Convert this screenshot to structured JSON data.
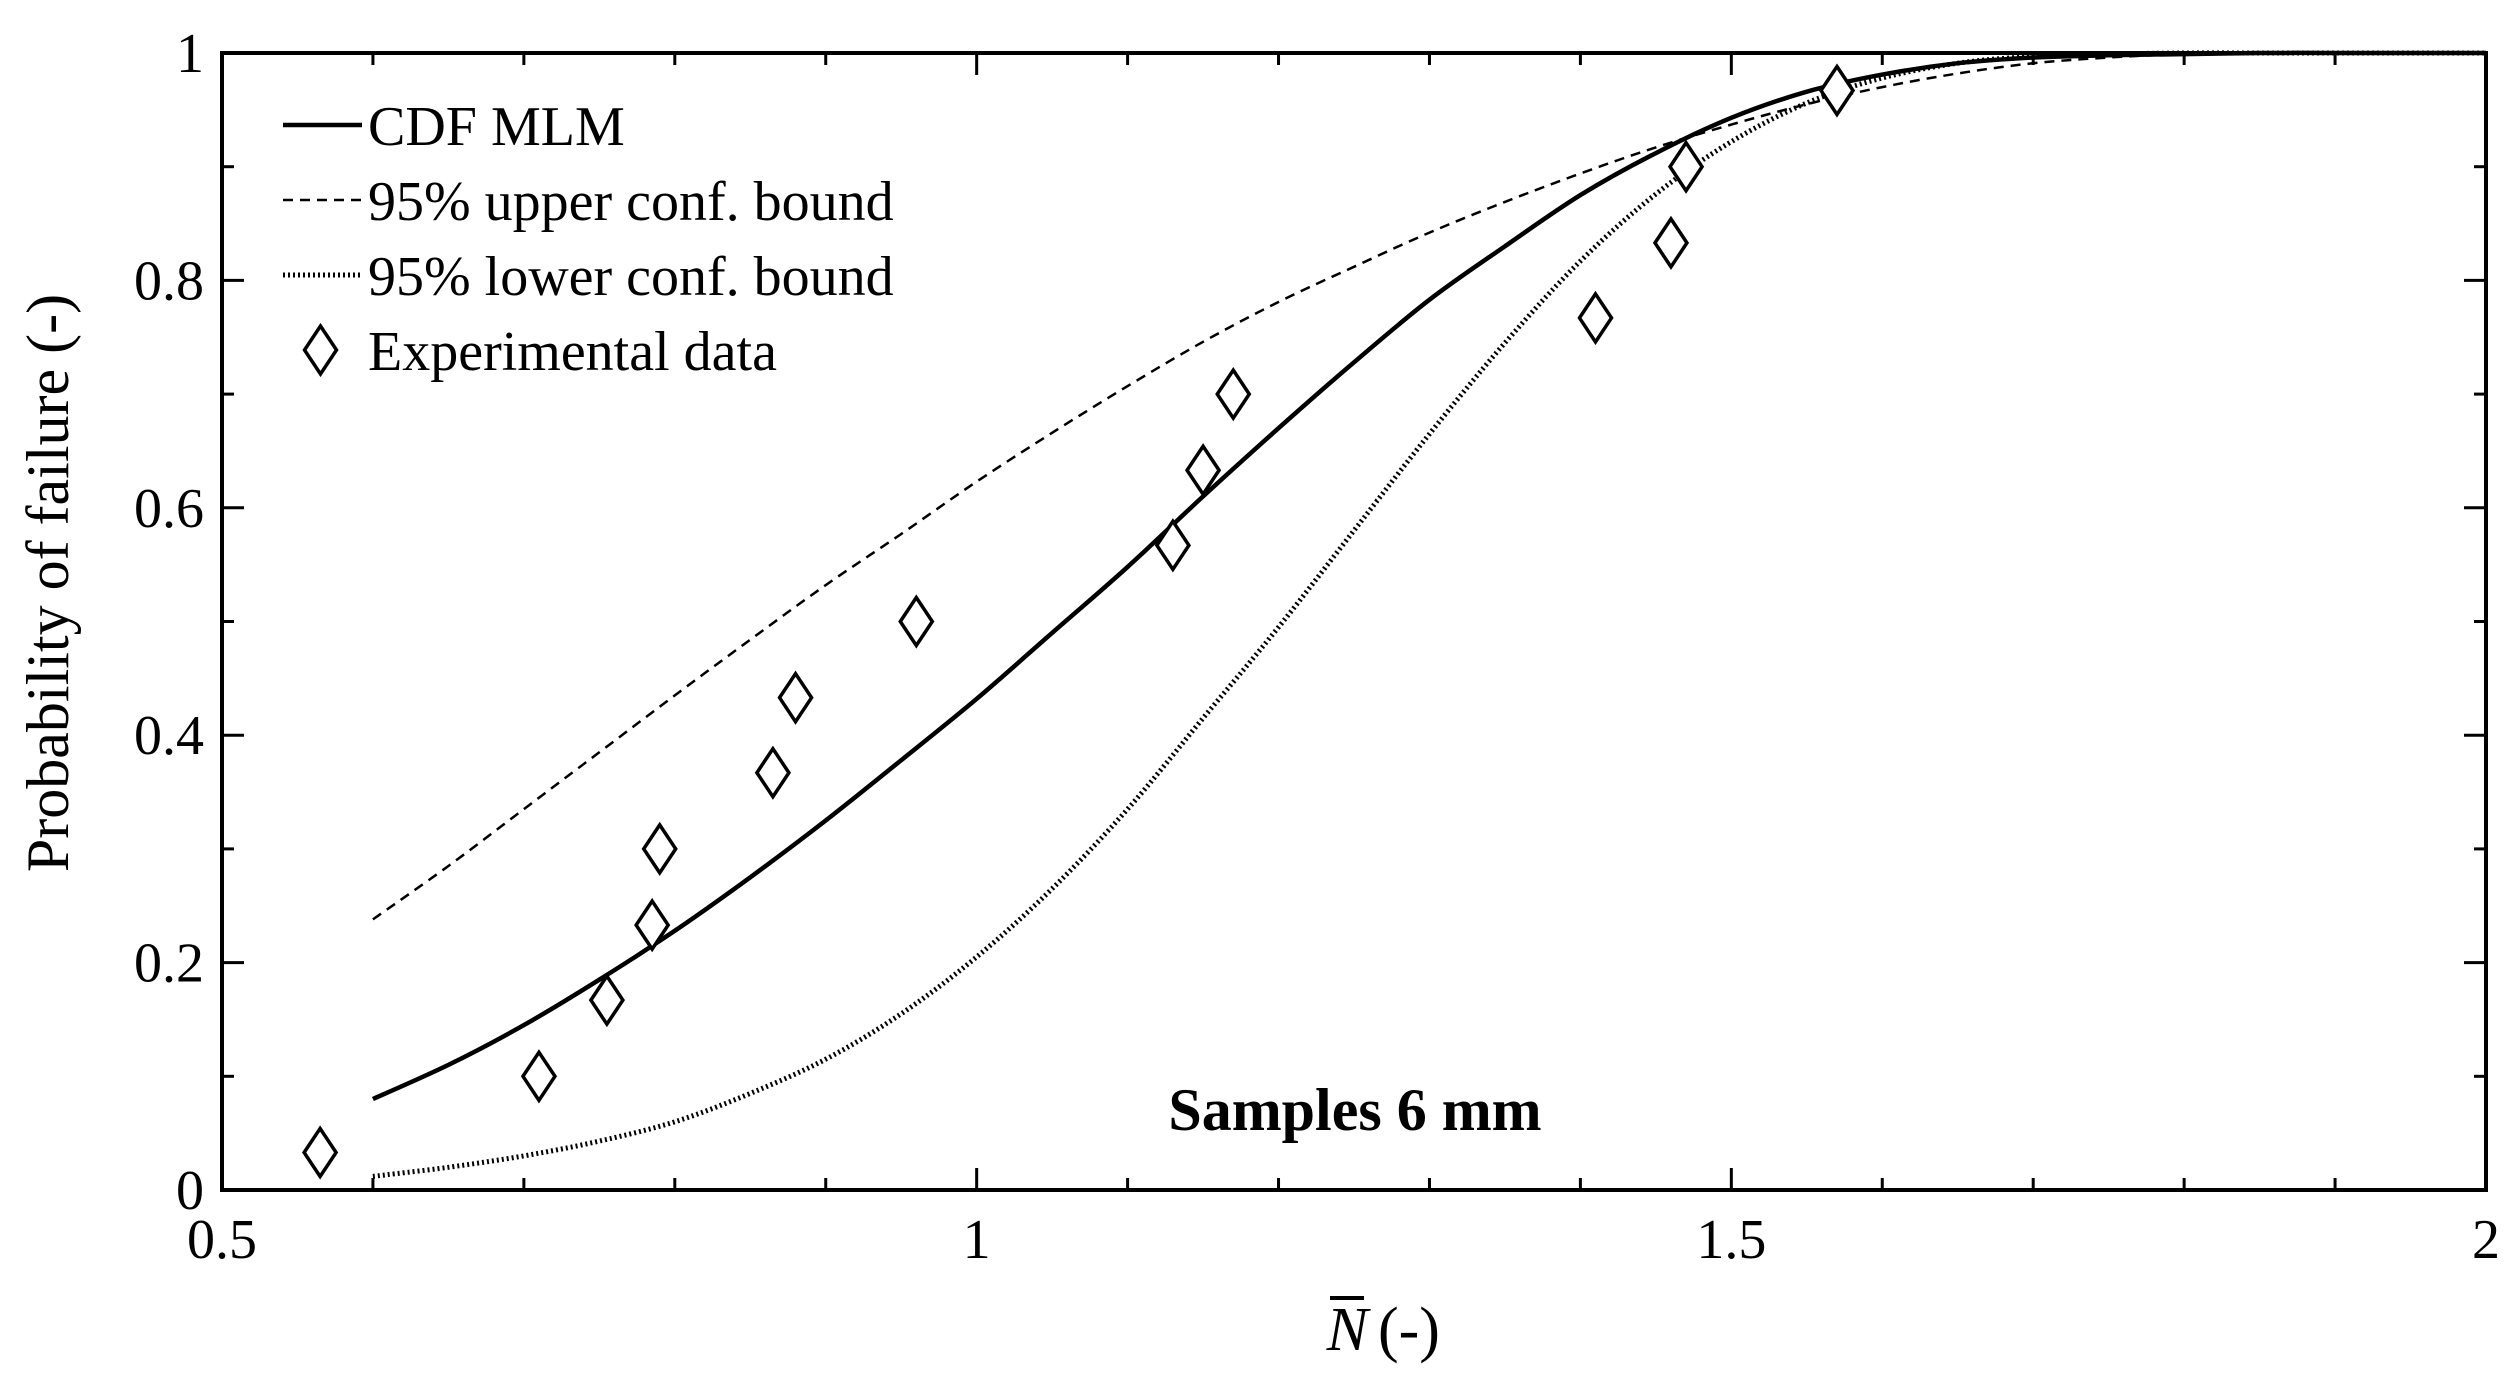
{
  "chart_data": {
    "type": "line",
    "title": "",
    "annotation": "Samples 6 mm",
    "xlabel": {
      "symbol": "N",
      "unit": "(-)"
    },
    "ylabel": "Probability of failure (-)",
    "xlim": [
      0.5,
      2.0
    ],
    "ylim": [
      0,
      1.0
    ],
    "x_ticks": [
      0.5,
      1.0,
      1.5,
      2.0
    ],
    "x_tick_labels": [
      "0.5",
      "1",
      "1.5",
      "2"
    ],
    "x_minor_step": 0.1,
    "y_ticks": [
      0,
      0.2,
      0.4,
      0.6,
      0.8,
      1.0
    ],
    "y_tick_labels": [
      "0",
      "0.2",
      "0.4",
      "0.6",
      "0.8",
      "1"
    ],
    "y_minor_step": 0.1,
    "grid": false,
    "legend_position": "top-left",
    "legend": [
      {
        "label": "CDF MLM",
        "style": "solid"
      },
      {
        "label": "95% upper conf. bound",
        "style": "dashed"
      },
      {
        "label": "95% lower conf. bound",
        "style": "dotted"
      },
      {
        "label": "Experimental data",
        "style": "diamond"
      }
    ],
    "series": [
      {
        "name": "CDF MLM",
        "style": "solid",
        "x": [
          0.6,
          0.65,
          0.7,
          0.75,
          0.8,
          0.85,
          0.9,
          0.95,
          1.0,
          1.05,
          1.1,
          1.15,
          1.2,
          1.25,
          1.3,
          1.35,
          1.4,
          1.45,
          1.5,
          1.55,
          1.6,
          1.65,
          1.7,
          1.75,
          1.8,
          1.85,
          1.9,
          1.95,
          2.0
        ],
        "y": [
          0.08,
          0.11,
          0.145,
          0.185,
          0.228,
          0.275,
          0.325,
          0.378,
          0.432,
          0.49,
          0.548,
          0.61,
          0.67,
          0.728,
          0.783,
          0.83,
          0.875,
          0.912,
          0.943,
          0.966,
          0.981,
          0.991,
          0.996,
          0.998,
          0.999,
          1.0,
          1.0,
          1.0,
          1.0
        ]
      },
      {
        "name": "95% upper conf. bound",
        "style": "dashed",
        "x": [
          0.6,
          0.65,
          0.7,
          0.75,
          0.8,
          0.85,
          0.9,
          0.95,
          1.0,
          1.05,
          1.1,
          1.15,
          1.2,
          1.25,
          1.3,
          1.35,
          1.4,
          1.45,
          1.5,
          1.55,
          1.6,
          1.65,
          1.7,
          1.75,
          1.8,
          1.85,
          1.9,
          1.95,
          2.0
        ],
        "y": [
          0.238,
          0.285,
          0.335,
          0.385,
          0.435,
          0.484,
          0.532,
          0.577,
          0.623,
          0.666,
          0.707,
          0.746,
          0.781,
          0.812,
          0.842,
          0.869,
          0.894,
          0.917,
          0.937,
          0.955,
          0.97,
          0.982,
          0.991,
          0.996,
          0.999,
          1.0,
          1.0,
          1.0,
          1.0
        ]
      },
      {
        "name": "95% lower conf. bound",
        "style": "dotted",
        "x": [
          0.6,
          0.65,
          0.7,
          0.75,
          0.8,
          0.85,
          0.9,
          0.95,
          1.0,
          1.05,
          1.1,
          1.15,
          1.2,
          1.25,
          1.3,
          1.35,
          1.4,
          1.45,
          1.5,
          1.55,
          1.6,
          1.65,
          1.7,
          1.75,
          1.8,
          1.85,
          1.9,
          1.95,
          2.0
        ],
        "y": [
          0.012,
          0.02,
          0.03,
          0.043,
          0.06,
          0.085,
          0.115,
          0.155,
          0.205,
          0.265,
          0.335,
          0.415,
          0.495,
          0.58,
          0.665,
          0.745,
          0.817,
          0.876,
          0.922,
          0.956,
          0.978,
          0.991,
          0.997,
          0.999,
          1.0,
          1.0,
          1.0,
          1.0,
          1.0
        ]
      }
    ],
    "scatter": {
      "name": "Experimental data",
      "x": [
        0.565,
        0.71,
        0.755,
        0.785,
        0.79,
        0.865,
        0.88,
        0.96,
        1.13,
        1.15,
        1.17,
        1.41,
        1.46,
        1.47,
        1.57
      ],
      "y": [
        0.033,
        0.1,
        0.167,
        0.233,
        0.3,
        0.367,
        0.433,
        0.5,
        0.567,
        0.633,
        0.7,
        0.767,
        0.833,
        0.9,
        0.967
      ]
    }
  }
}
